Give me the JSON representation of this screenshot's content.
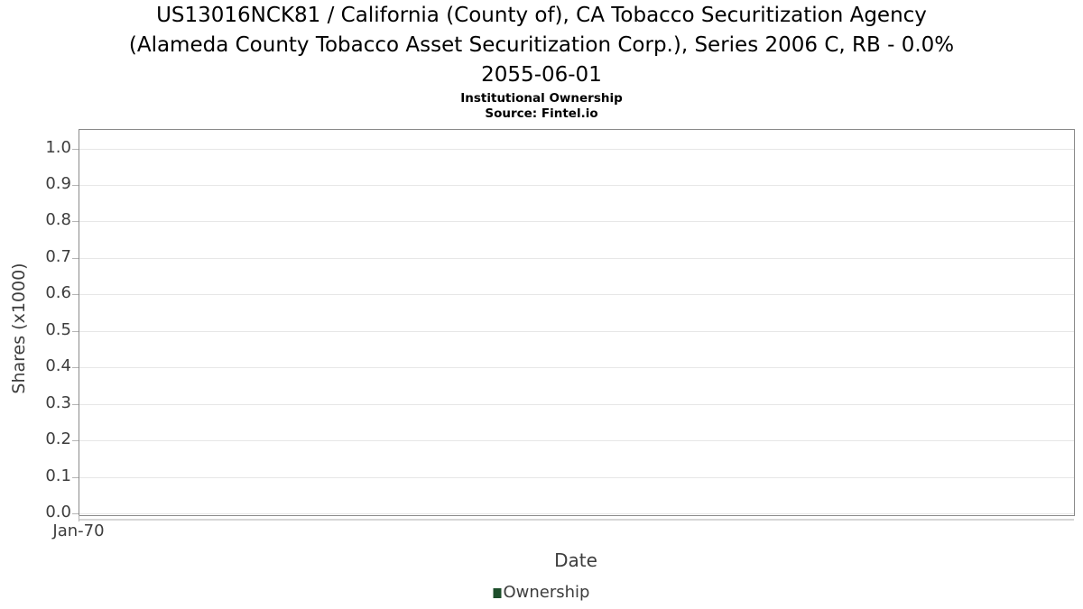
{
  "chart_data": {
    "type": "bar",
    "title_lines": [
      "US13016NCK81 / California (County of), CA Tobacco Securitization Agency",
      "(Alameda County Tobacco Asset Securitization Corp.), Series 2006 C, RB - 0.0%",
      "2055-06-01"
    ],
    "title": "US13016NCK81 / California (County of), CA Tobacco Securitization Agency (Alameda County Tobacco Asset Securitization Corp.), Series 2006 C, RB - 0.0% 2055-06-01",
    "subtitle": "Institutional Ownership",
    "source": "Source: Fintel.io",
    "xlabel": "Date",
    "ylabel": "Shares (x1000)",
    "x_ticks": [
      "Jan-70"
    ],
    "y_ticks": [
      "0.0",
      "0.1",
      "0.2",
      "0.3",
      "0.4",
      "0.5",
      "0.6",
      "0.7",
      "0.8",
      "0.9",
      "1.0"
    ],
    "y_tick_values": [
      0.0,
      0.1,
      0.2,
      0.3,
      0.4,
      0.5,
      0.6,
      0.7,
      0.8,
      0.9,
      1.0
    ],
    "ylim": [
      0.0,
      1.06
    ],
    "grid": true,
    "legend_position": "bottom-center",
    "series": [
      {
        "name": "Ownership",
        "color": "#1d4e2b",
        "x": [],
        "values": []
      }
    ],
    "colors": {
      "plot_border": "#8a8a8a",
      "gridline": "#e7e7e7",
      "tick_mark": "#b5b5b5",
      "axis_text": "#3d3d3d",
      "title_text": "#000000",
      "background": "#ffffff"
    }
  }
}
